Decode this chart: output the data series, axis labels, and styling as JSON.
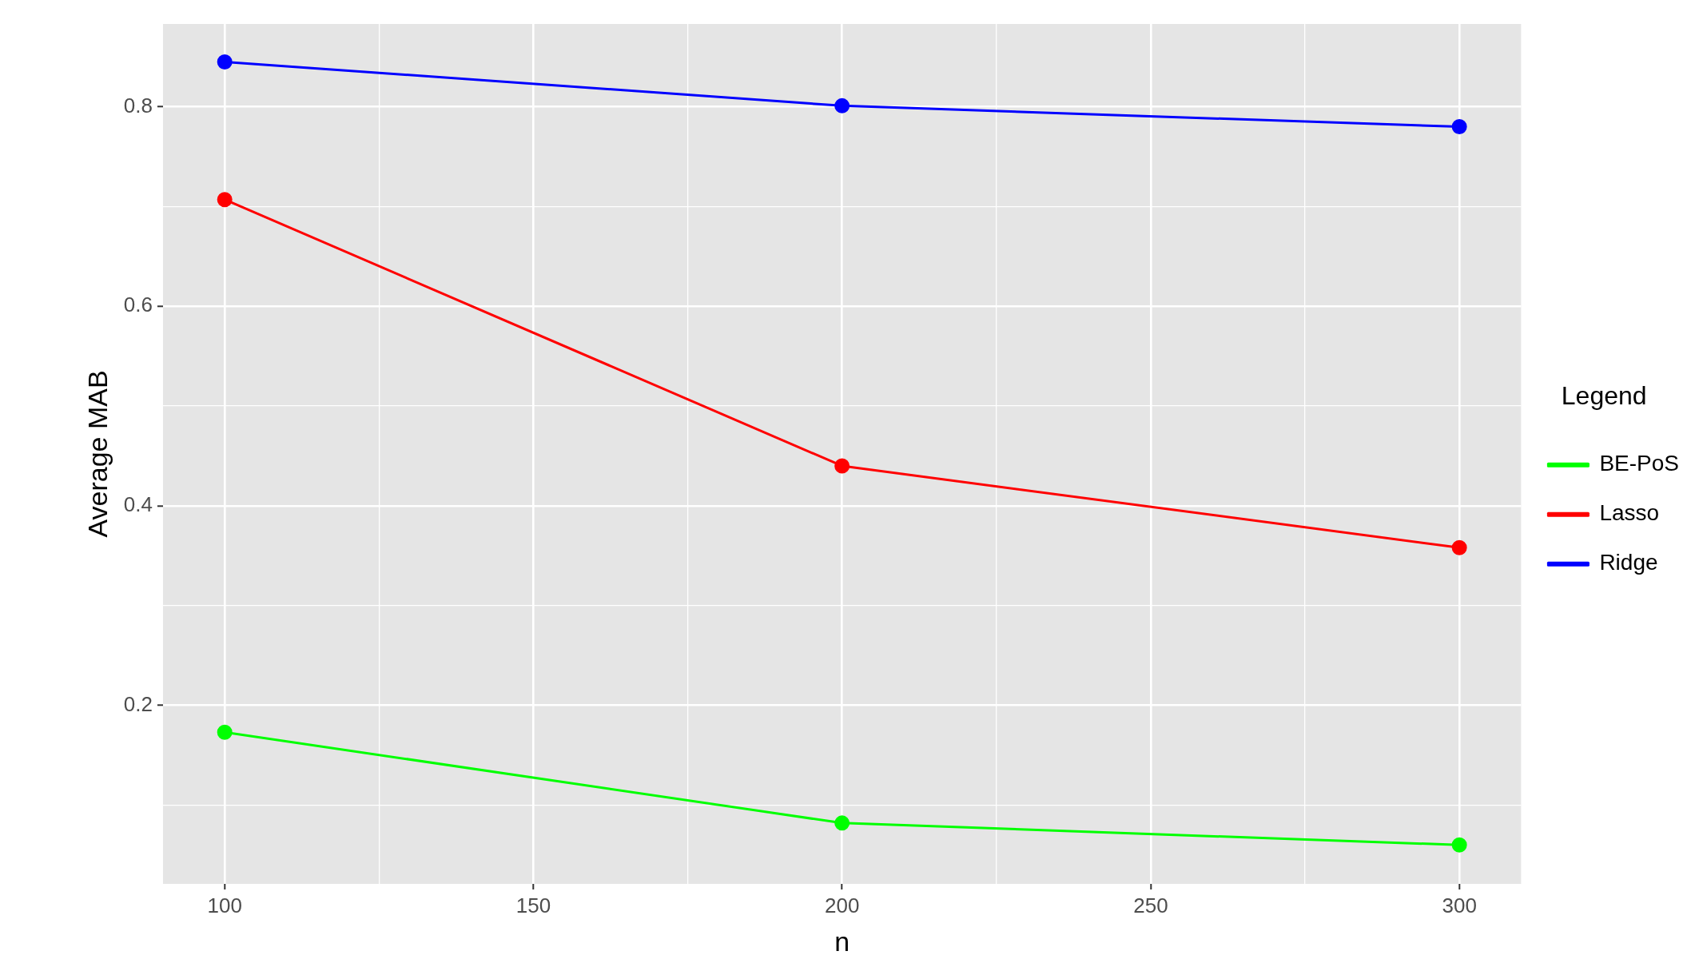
{
  "chart_data": {
    "type": "line",
    "xlabel": "n",
    "ylabel": "Average MAB",
    "legend_title": "Legend",
    "legend": "right",
    "grid": true,
    "marker": "circle",
    "line_style": "solid",
    "xlim": [
      90,
      310
    ],
    "xticks": [
      {
        "value": 100,
        "label": "100"
      },
      {
        "value": 125,
        "label": null
      },
      {
        "value": 150,
        "label": "150"
      },
      {
        "value": 175,
        "label": null
      },
      {
        "value": 200,
        "label": "200"
      },
      {
        "value": 225,
        "label": null
      },
      {
        "value": 250,
        "label": "250"
      },
      {
        "value": 275,
        "label": null
      },
      {
        "value": 300,
        "label": "300"
      }
    ],
    "ylim": [
      0.021,
      0.883
    ],
    "yticks": [
      {
        "value": 0.1,
        "label": null
      },
      {
        "value": 0.2,
        "label": "0.2"
      },
      {
        "value": 0.3,
        "label": null
      },
      {
        "value": 0.4,
        "label": "0.4"
      },
      {
        "value": 0.5,
        "label": null
      },
      {
        "value": 0.6,
        "label": "0.6"
      },
      {
        "value": 0.7,
        "label": null
      },
      {
        "value": 0.8,
        "label": "0.8"
      }
    ],
    "x": [
      100,
      200,
      300
    ],
    "series": [
      {
        "name": "BE-PoS",
        "color": "#00ff00",
        "values": [
          0.173,
          0.082,
          0.06
        ]
      },
      {
        "name": "Lasso",
        "color": "#ff0000",
        "values": [
          0.707,
          0.44,
          0.358
        ]
      },
      {
        "name": "Ridge",
        "color": "#0000ff",
        "values": [
          0.845,
          0.801,
          0.78
        ]
      }
    ]
  }
}
